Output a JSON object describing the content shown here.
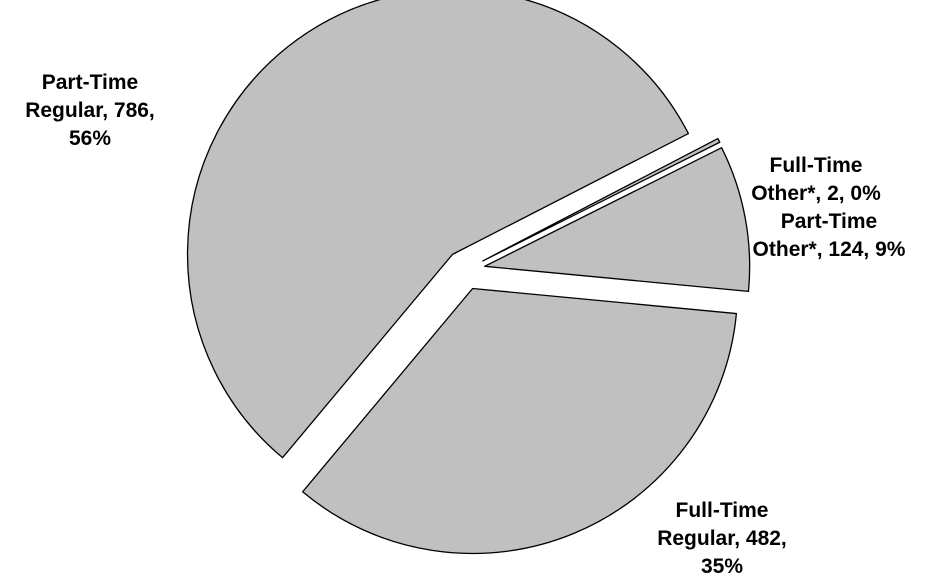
{
  "chart_data": {
    "type": "pie",
    "title": "",
    "slices": [
      {
        "category": "Full-Time Other*",
        "value": 2,
        "percent": "0%",
        "label_lines": [
          "Full-Time",
          "Other*, 2, 0%"
        ]
      },
      {
        "category": "Part-Time Other*",
        "value": 124,
        "percent": "9%",
        "label_lines": [
          "Part-Time",
          "Other*, 124, 9%"
        ]
      },
      {
        "category": "Full-Time Regular",
        "value": 482,
        "percent": "35%",
        "label_lines": [
          "Full-Time",
          "Regular, 482,",
          "35%"
        ]
      },
      {
        "category": "Part-Time Regular",
        "value": 786,
        "percent": "56%",
        "label_lines": [
          "Part-Time",
          "Regular, 786,",
          "56%"
        ]
      }
    ],
    "slice_color": "#c0c0c0",
    "outline_color": "#000000",
    "exploded": true,
    "legend": "none"
  }
}
